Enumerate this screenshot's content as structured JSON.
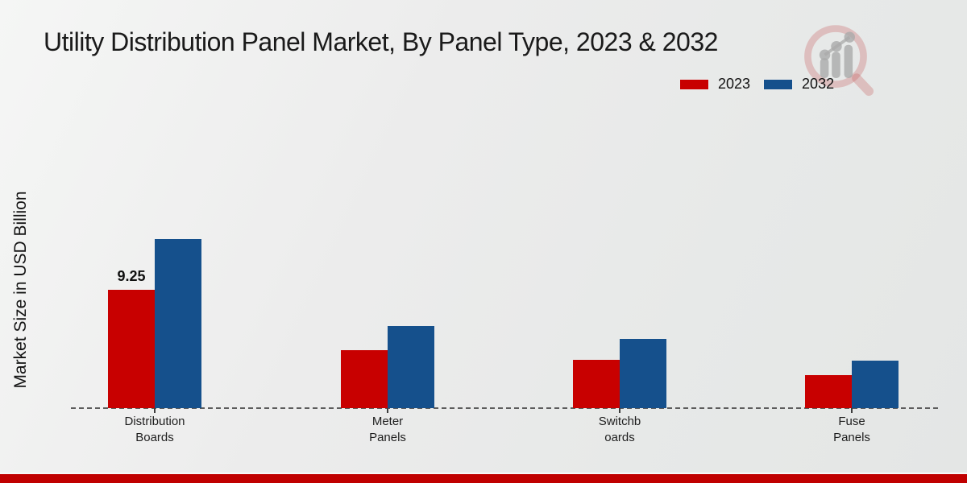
{
  "header": {
    "title": "Utility Distribution Panel Market, By Panel Type, 2023 & 2032"
  },
  "legend": {
    "items": [
      {
        "label": "2023",
        "color": "#c80000"
      },
      {
        "label": "2032",
        "color": "#15508c"
      }
    ]
  },
  "y_axis": {
    "label": "Market Size in USD Billion"
  },
  "icons": {
    "watermark": "magnifier-bar-chart-logo"
  },
  "footer": {
    "accent_color": "#c00000"
  },
  "chart_data": {
    "type": "bar",
    "title": "Utility Distribution Panel Market, By Panel Type, 2023 & 2032",
    "ylabel": "Market Size in USD Billion",
    "xlabel": "",
    "units": "USD Billion",
    "categories": [
      "Distribution Boards",
      "Meter Panels",
      "Switchboards",
      "Fuse Panels"
    ],
    "category_label_lines": [
      [
        "Distribution",
        "Boards"
      ],
      [
        "Meter",
        "Panels"
      ],
      [
        "Switchb",
        "oards"
      ],
      [
        "Fuse",
        "Panels"
      ]
    ],
    "series": [
      {
        "name": "2023",
        "color": "#c80000",
        "values": [
          9.25,
          4.5,
          3.8,
          2.6
        ]
      },
      {
        "name": "2032",
        "color": "#15508c",
        "values": [
          13.2,
          6.4,
          5.4,
          3.7
        ]
      }
    ],
    "value_labels": [
      {
        "series": "2023",
        "category_index": 0,
        "text": "9.25"
      }
    ],
    "grid": false,
    "legend_position": "top-right",
    "baseline_style": "dashed",
    "ylim": [
      0,
      14
    ]
  }
}
